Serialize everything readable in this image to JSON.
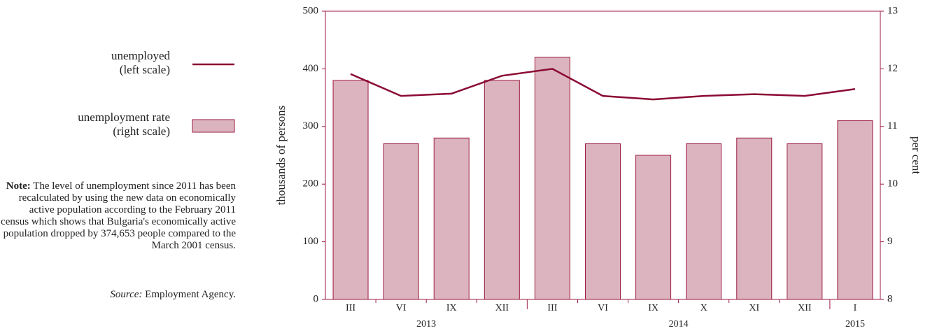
{
  "chart_data": {
    "type": "bar-line",
    "category_groups": [
      {
        "name": "2013",
        "categories": [
          "III",
          "VI",
          "IX",
          "XII"
        ]
      },
      {
        "name": "2014",
        "categories": [
          "III",
          "VI",
          "IX",
          "X",
          "XI",
          "XII"
        ]
      },
      {
        "name": "2015",
        "categories": [
          "I"
        ]
      }
    ],
    "series": [
      {
        "name": "unemployed",
        "scale_label": "(left scale)",
        "type": "line",
        "axis": "y",
        "color": "#8b0a33",
        "values": [
          391,
          353,
          357,
          388,
          400,
          353,
          347,
          353,
          356,
          353,
          365
        ]
      },
      {
        "name": "unemployment rate",
        "scale_label": "(right scale)",
        "type": "bar",
        "axis": "y2",
        "color": "#dcb4bf",
        "edge_color": "#9b1b3f",
        "values": [
          11.8,
          10.7,
          10.8,
          11.8,
          12.2,
          10.7,
          10.5,
          10.7,
          10.8,
          10.7,
          11.1
        ]
      }
    ],
    "ylabel": "thousands of persons",
    "y2label": "per cent",
    "ylim": [
      0,
      500
    ],
    "yticks": [
      0,
      100,
      200,
      300,
      400,
      500
    ],
    "y2lim": [
      8,
      13
    ],
    "y2ticks": [
      8,
      9,
      10,
      11,
      12,
      13
    ],
    "note": {
      "label": "Note:",
      "text": "The level of unemployment since 2011 has been recalculated by using the new data on economically active population according to the February 2011 census which shows that Bulgaria's economically active population dropped by 374,653 people compared to the March 2001 census."
    },
    "source": {
      "label": "Source:",
      "text": "Employment Agency."
    }
  }
}
